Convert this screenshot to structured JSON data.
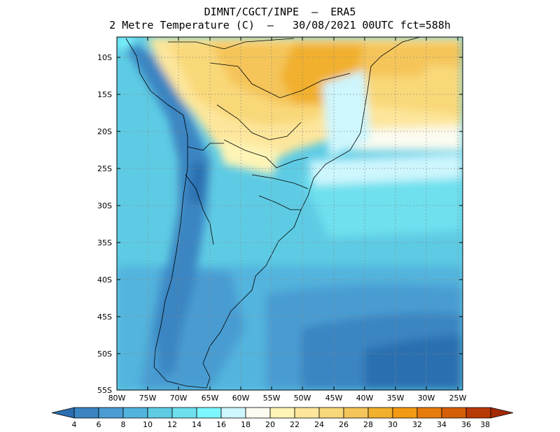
{
  "title": {
    "line1": "DIMNT/CGCT/INPE  –  ERA5",
    "line2": "2 Metre Temperature (C)  –   30/08/2021 00UTC fct=588h"
  },
  "map": {
    "lat_labels": [
      "10S",
      "15S",
      "20S",
      "25S",
      "30S",
      "35S",
      "40S",
      "45S",
      "50S",
      "55S"
    ],
    "lon_labels": [
      "80W",
      "75W",
      "70W",
      "65W",
      "60W",
      "55W",
      "50W",
      "45W",
      "40W",
      "35W",
      "30W",
      "25W"
    ]
  },
  "colorbar": {
    "labels": [
      "4",
      "6",
      "8",
      "10",
      "12",
      "14",
      "16",
      "18",
      "20",
      "22",
      "24",
      "26",
      "28",
      "30",
      "32",
      "34",
      "36",
      "38"
    ],
    "colors": [
      "#2c6fb0",
      "#3a85c2",
      "#4a9cd2",
      "#52b4dd",
      "#5ecbe4",
      "#6ee0ee",
      "#7df7ff",
      "#cdf6fd",
      "#fcfbef",
      "#fdf4b6",
      "#fde69b",
      "#f9d879",
      "#f5c55a",
      "#f1b02e",
      "#f39a12",
      "#e77c0c",
      "#d45f08",
      "#b83a05",
      "#a22a05"
    ]
  }
}
